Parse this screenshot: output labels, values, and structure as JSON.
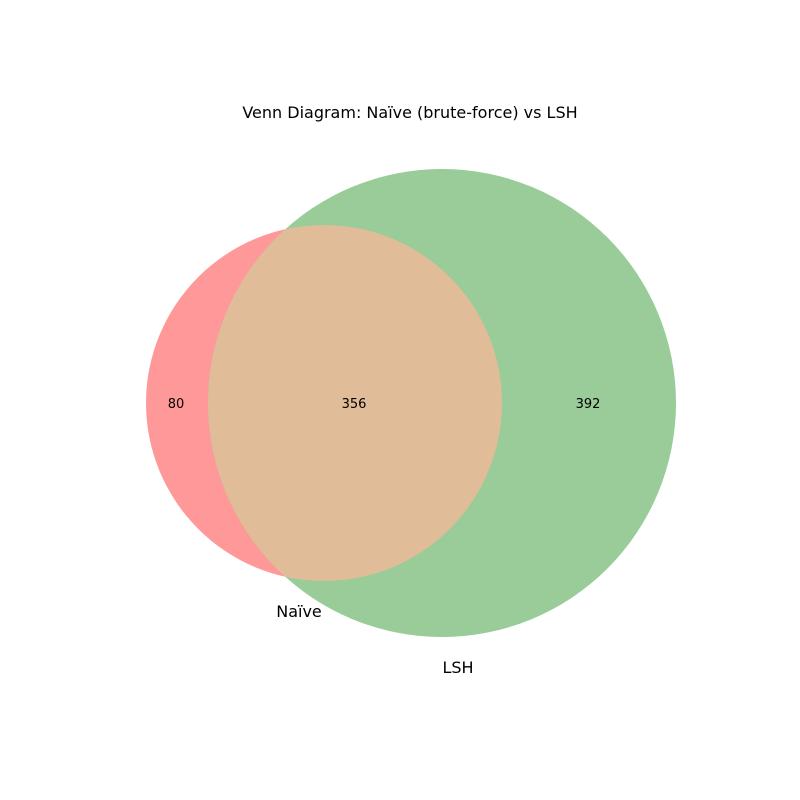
{
  "title": "Venn Diagram: Naïve (brute-force) vs LSH",
  "sets": {
    "a": {
      "label": "Naïve",
      "color": "#ff9999"
    },
    "b": {
      "label": "LSH",
      "color": "#99cc99"
    },
    "overlap_color": "#e0bc98"
  },
  "regions": {
    "a_only": "80",
    "both": "356",
    "b_only": "392"
  }
}
